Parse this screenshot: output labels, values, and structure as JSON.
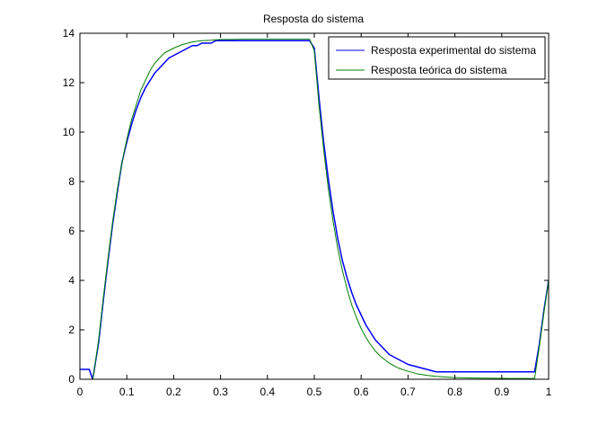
{
  "chart_data": {
    "type": "line",
    "title": "Resposta do sistema",
    "xlabel": "",
    "ylabel": "",
    "xlim": [
      0,
      1
    ],
    "ylim": [
      0,
      14
    ],
    "x_ticks": [
      0,
      0.1,
      0.2,
      0.3,
      0.4,
      0.5,
      0.6,
      0.7,
      0.8,
      0.9,
      1
    ],
    "x_tick_labels": [
      "0",
      "0.1",
      "0.2",
      "0.3",
      "0.4",
      "0.5",
      "0.6",
      "0.7",
      "0.8",
      "0.9",
      "1"
    ],
    "y_ticks": [
      0,
      2,
      4,
      6,
      8,
      10,
      12,
      14
    ],
    "y_tick_labels": [
      "0",
      "2",
      "4",
      "6",
      "8",
      "10",
      "12",
      "14"
    ],
    "grid": false,
    "legend_position": "top-right",
    "series": [
      {
        "name": "Resposta experimental do sistema",
        "color": "#0000ff",
        "x": [
          0,
          0.02,
          0.027,
          0.03,
          0.04,
          0.05,
          0.06,
          0.07,
          0.08,
          0.09,
          0.1,
          0.11,
          0.12,
          0.13,
          0.14,
          0.15,
          0.16,
          0.17,
          0.18,
          0.19,
          0.2,
          0.21,
          0.22,
          0.23,
          0.24,
          0.25,
          0.26,
          0.27,
          0.28,
          0.29,
          0.3,
          0.32,
          0.34,
          0.36,
          0.4,
          0.44,
          0.47,
          0.49,
          0.5,
          0.51,
          0.52,
          0.53,
          0.54,
          0.55,
          0.56,
          0.57,
          0.58,
          0.59,
          0.6,
          0.61,
          0.62,
          0.63,
          0.64,
          0.65,
          0.66,
          0.67,
          0.68,
          0.7,
          0.72,
          0.74,
          0.76,
          0.78,
          0.8,
          0.84,
          0.88,
          0.92,
          0.96,
          0.97,
          0.98,
          0.99,
          1.0
        ],
        "y": [
          0.4,
          0.4,
          0.0,
          0.3,
          1.5,
          3.2,
          4.8,
          6.3,
          7.6,
          8.8,
          9.6,
          10.3,
          10.9,
          11.4,
          11.8,
          12.1,
          12.4,
          12.6,
          12.8,
          13.0,
          13.1,
          13.2,
          13.3,
          13.4,
          13.5,
          13.5,
          13.6,
          13.6,
          13.6,
          13.7,
          13.7,
          13.7,
          13.7,
          13.7,
          13.7,
          13.7,
          13.7,
          13.7,
          13.4,
          11.4,
          9.6,
          8.1,
          6.8,
          5.7,
          4.8,
          4.1,
          3.5,
          3.0,
          2.6,
          2.2,
          1.9,
          1.6,
          1.4,
          1.2,
          1.0,
          0.9,
          0.8,
          0.6,
          0.5,
          0.4,
          0.3,
          0.3,
          0.3,
          0.3,
          0.3,
          0.3,
          0.3,
          0.3,
          1.4,
          2.8,
          4.0
        ]
      },
      {
        "name": "Resposta teórica do sistema",
        "color": "#008000",
        "x": [
          0,
          0.02,
          0.027,
          0.03,
          0.04,
          0.05,
          0.06,
          0.07,
          0.08,
          0.09,
          0.1,
          0.11,
          0.12,
          0.13,
          0.14,
          0.15,
          0.16,
          0.17,
          0.18,
          0.19,
          0.2,
          0.22,
          0.24,
          0.26,
          0.28,
          0.3,
          0.32,
          0.35,
          0.4,
          0.45,
          0.48,
          0.49,
          0.5,
          0.51,
          0.52,
          0.53,
          0.54,
          0.55,
          0.56,
          0.57,
          0.58,
          0.59,
          0.6,
          0.61,
          0.62,
          0.63,
          0.64,
          0.65,
          0.66,
          0.68,
          0.7,
          0.72,
          0.74,
          0.76,
          0.78,
          0.8,
          0.84,
          0.88,
          0.92,
          0.96,
          0.97,
          0.98,
          0.99,
          1.0
        ],
        "y": [
          0.0,
          0.0,
          0.0,
          0.3,
          1.6,
          3.3,
          4.9,
          6.4,
          7.7,
          8.8,
          9.7,
          10.5,
          11.1,
          11.7,
          12.1,
          12.5,
          12.8,
          13.0,
          13.2,
          13.3,
          13.4,
          13.55,
          13.65,
          13.7,
          13.72,
          13.75,
          13.75,
          13.76,
          13.76,
          13.76,
          13.76,
          13.76,
          13.3,
          11.1,
          9.3,
          7.7,
          6.4,
          5.3,
          4.4,
          3.65,
          3.0,
          2.5,
          2.05,
          1.7,
          1.4,
          1.15,
          0.95,
          0.8,
          0.65,
          0.45,
          0.32,
          0.22,
          0.16,
          0.12,
          0.09,
          0.07,
          0.05,
          0.04,
          0.03,
          0.03,
          0.03,
          1.3,
          2.7,
          4.0
        ]
      }
    ]
  }
}
